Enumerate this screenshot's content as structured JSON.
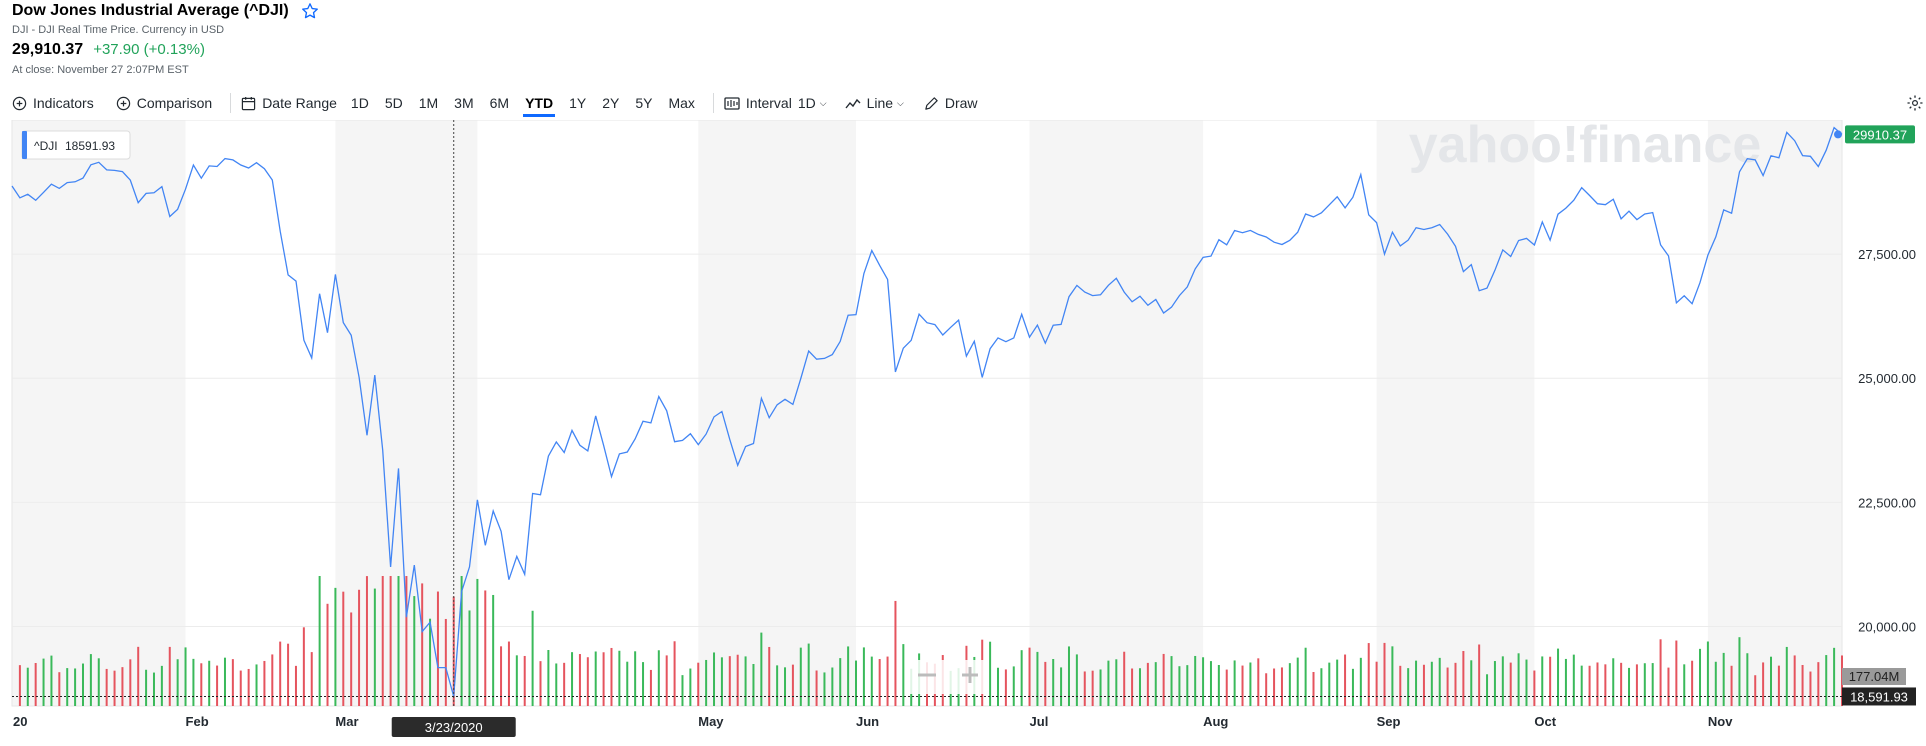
{
  "quote": {
    "title": "Dow Jones Industrial Average (^DJI)",
    "subtitle": "DJI - DJI Real Time Price. Currency in USD",
    "price": "29,910.37",
    "change": "+37.90 (+0.13%)",
    "close_time": "At close: November 27 2:07PM EST"
  },
  "toolbar": {
    "indicators": "Indicators",
    "comparison": "Comparison",
    "date_range": "Date Range",
    "ranges": [
      "1D",
      "5D",
      "1M",
      "3M",
      "6M",
      "YTD",
      "1Y",
      "2Y",
      "5Y",
      "Max"
    ],
    "active_range": "YTD",
    "interval_label": "Interval",
    "interval_value": "1D",
    "chart_type": "Line",
    "draw": "Draw"
  },
  "tooltip": {
    "symbol": "^DJI",
    "value": "18591.93"
  },
  "crosshair": {
    "date_label": "3/23/2020",
    "price_label": "18,591.93"
  },
  "volume_label": "177.04M",
  "last_price_label": "29910.37",
  "watermark": "yahoo!finance",
  "colors": {
    "line": "#4285f4",
    "up": "#3ab95a",
    "down": "#e5545e",
    "accent": "#0f69ff",
    "last": "#21a35a"
  },
  "chart_data": {
    "type": "line",
    "ylim": [
      18400,
      30200
    ],
    "y_ticks": [
      "27,500.00",
      "25,000.00",
      "22,500.00",
      "20,000.00"
    ],
    "y_tick_values": [
      27500,
      25000,
      22500,
      20000
    ],
    "x_tick_labels": [
      "20",
      "Feb",
      "Mar",
      "May",
      "Jun",
      "Jul",
      "Aug",
      "Sep",
      "Oct",
      "Nov"
    ],
    "x_tick_days": [
      0,
      22,
      41,
      87,
      107,
      129,
      151,
      173,
      193,
      215
    ],
    "total_days": 232,
    "crosshair_day": 56,
    "series": [
      {
        "points": [
          [
            0,
            28870
          ],
          [
            1,
            28634
          ],
          [
            2,
            28703
          ],
          [
            3,
            28583
          ],
          [
            4,
            28745
          ],
          [
            5,
            28907
          ],
          [
            6,
            28823
          ],
          [
            7,
            28940
          ],
          [
            8,
            28956
          ],
          [
            9,
            29030
          ],
          [
            10,
            29297
          ],
          [
            11,
            29348
          ],
          [
            12,
            29196
          ],
          [
            13,
            29186
          ],
          [
            14,
            29160
          ],
          [
            15,
            28990
          ],
          [
            16,
            28535
          ],
          [
            17,
            28722
          ],
          [
            18,
            28735
          ],
          [
            19,
            28859
          ],
          [
            20,
            28256
          ],
          [
            21,
            28399
          ],
          [
            22,
            28807
          ],
          [
            23,
            29291
          ],
          [
            24,
            29029
          ],
          [
            25,
            29276
          ],
          [
            26,
            29263
          ],
          [
            27,
            29423
          ],
          [
            28,
            29397
          ],
          [
            29,
            29294
          ],
          [
            30,
            29233
          ],
          [
            31,
            29340
          ],
          [
            32,
            29219
          ],
          [
            33,
            28992
          ],
          [
            34,
            27960
          ],
          [
            35,
            27081
          ],
          [
            36,
            26957
          ],
          [
            37,
            25766
          ],
          [
            38,
            25409
          ],
          [
            39,
            26703
          ],
          [
            40,
            25917
          ],
          [
            41,
            27091
          ],
          [
            42,
            26121
          ],
          [
            43,
            25865
          ],
          [
            44,
            25018
          ],
          [
            45,
            23851
          ],
          [
            46,
            25064
          ],
          [
            47,
            23553
          ],
          [
            48,
            21200
          ],
          [
            49,
            23185
          ],
          [
            50,
            20189
          ],
          [
            51,
            21237
          ],
          [
            52,
            19899
          ],
          [
            53,
            20088
          ],
          [
            54,
            19174
          ],
          [
            55,
            19173
          ],
          [
            56,
            18591
          ],
          [
            57,
            20704
          ],
          [
            58,
            21200
          ],
          [
            59,
            22552
          ],
          [
            60,
            21636
          ],
          [
            61,
            22327
          ],
          [
            62,
            21917
          ],
          [
            63,
            20943
          ],
          [
            64,
            21413
          ],
          [
            65,
            21052
          ],
          [
            66,
            22679
          ],
          [
            67,
            22653
          ],
          [
            68,
            23433
          ],
          [
            69,
            23719
          ],
          [
            70,
            23504
          ],
          [
            71,
            23949
          ],
          [
            72,
            23650
          ],
          [
            73,
            23537
          ],
          [
            74,
            24242
          ],
          [
            75,
            23650
          ],
          [
            76,
            23019
          ],
          [
            77,
            23476
          ],
          [
            78,
            23515
          ],
          [
            79,
            23776
          ],
          [
            80,
            24133
          ],
          [
            81,
            24101
          ],
          [
            82,
            24633
          ],
          [
            83,
            24345
          ],
          [
            84,
            23723
          ],
          [
            85,
            23749
          ],
          [
            86,
            23883
          ],
          [
            87,
            23664
          ],
          [
            88,
            23875
          ],
          [
            89,
            24221
          ],
          [
            90,
            24331
          ],
          [
            91,
            23765
          ],
          [
            92,
            23247
          ],
          [
            93,
            23625
          ],
          [
            94,
            23685
          ],
          [
            95,
            24597
          ],
          [
            96,
            24206
          ],
          [
            97,
            24465
          ],
          [
            98,
            24575
          ],
          [
            99,
            24474
          ],
          [
            100,
            24995
          ],
          [
            101,
            25548
          ],
          [
            102,
            25383
          ],
          [
            103,
            25400
          ],
          [
            104,
            25475
          ],
          [
            105,
            25742
          ],
          [
            106,
            26269
          ],
          [
            107,
            26282
          ],
          [
            108,
            27110
          ],
          [
            109,
            27572
          ],
          [
            110,
            27273
          ],
          [
            111,
            26990
          ],
          [
            112,
            25128
          ],
          [
            113,
            25605
          ],
          [
            114,
            25763
          ],
          [
            115,
            26290
          ],
          [
            116,
            26119
          ],
          [
            117,
            26080
          ],
          [
            118,
            25871
          ],
          [
            119,
            26025
          ],
          [
            120,
            26171
          ],
          [
            121,
            25445
          ],
          [
            122,
            25746
          ],
          [
            123,
            25016
          ],
          [
            124,
            25595
          ],
          [
            125,
            25812
          ],
          [
            126,
            25735
          ],
          [
            127,
            25813
          ],
          [
            128,
            26288
          ],
          [
            129,
            25827
          ],
          [
            130,
            26070
          ],
          [
            131,
            25707
          ],
          [
            132,
            26067
          ],
          [
            133,
            26085
          ],
          [
            134,
            26642
          ],
          [
            135,
            26870
          ],
          [
            136,
            26734
          ],
          [
            137,
            26664
          ],
          [
            138,
            26680
          ],
          [
            139,
            26871
          ],
          [
            140,
            27012
          ],
          [
            141,
            26734
          ],
          [
            142,
            26539
          ],
          [
            143,
            26652
          ],
          [
            144,
            26469
          ],
          [
            145,
            26585
          ],
          [
            146,
            26313
          ],
          [
            147,
            26430
          ],
          [
            148,
            26664
          ],
          [
            149,
            26840
          ],
          [
            150,
            27201
          ],
          [
            151,
            27433
          ],
          [
            152,
            27460
          ],
          [
            153,
            27790
          ],
          [
            154,
            27687
          ],
          [
            155,
            27974
          ],
          [
            156,
            27931
          ],
          [
            157,
            27976
          ],
          [
            158,
            27896
          ],
          [
            159,
            27844
          ],
          [
            160,
            27739
          ],
          [
            161,
            27692
          ],
          [
            162,
            27778
          ],
          [
            163,
            27940
          ],
          [
            164,
            28308
          ],
          [
            165,
            28248
          ],
          [
            166,
            28331
          ],
          [
            167,
            28492
          ],
          [
            168,
            28654
          ],
          [
            169,
            28430
          ],
          [
            170,
            28645
          ],
          [
            171,
            29100
          ],
          [
            172,
            28292
          ],
          [
            173,
            28133
          ],
          [
            174,
            27500
          ],
          [
            175,
            27940
          ],
          [
            176,
            27665
          ],
          [
            177,
            27781
          ],
          [
            178,
            28032
          ],
          [
            179,
            27995
          ],
          [
            180,
            28032
          ],
          [
            181,
            28096
          ],
          [
            182,
            27902
          ],
          [
            183,
            27657
          ],
          [
            184,
            27147
          ],
          [
            185,
            27288
          ],
          [
            186,
            26763
          ],
          [
            187,
            26815
          ],
          [
            188,
            27174
          ],
          [
            189,
            27584
          ],
          [
            190,
            27452
          ],
          [
            191,
            27773
          ],
          [
            192,
            27816
          ],
          [
            193,
            27682
          ],
          [
            194,
            28149
          ],
          [
            195,
            27781
          ],
          [
            196,
            28303
          ],
          [
            197,
            28425
          ],
          [
            198,
            28586
          ],
          [
            199,
            28837
          ],
          [
            200,
            28680
          ],
          [
            201,
            28514
          ],
          [
            202,
            28494
          ],
          [
            203,
            28606
          ],
          [
            204,
            28211
          ],
          [
            205,
            28364
          ],
          [
            206,
            28195
          ],
          [
            207,
            28308
          ],
          [
            208,
            28336
          ],
          [
            209,
            27685
          ],
          [
            210,
            27463
          ],
          [
            211,
            26519
          ],
          [
            212,
            26659
          ],
          [
            213,
            26501
          ],
          [
            214,
            26925
          ],
          [
            215,
            27480
          ],
          [
            216,
            27847
          ],
          [
            217,
            28390
          ],
          [
            218,
            28323
          ],
          [
            219,
            29157
          ],
          [
            220,
            29420
          ],
          [
            221,
            29397
          ],
          [
            222,
            29080
          ],
          [
            223,
            29479
          ],
          [
            224,
            29438
          ],
          [
            225,
            29950
          ],
          [
            226,
            29783
          ],
          [
            227,
            29483
          ],
          [
            228,
            29469
          ],
          [
            229,
            29263
          ],
          [
            230,
            29591
          ],
          [
            231,
            30046
          ],
          [
            232,
            29910
          ]
        ]
      }
    ]
  }
}
